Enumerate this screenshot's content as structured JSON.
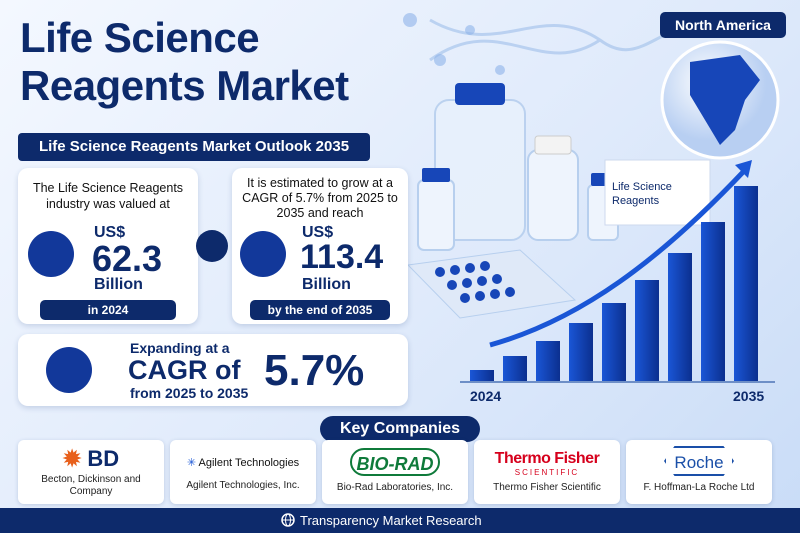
{
  "header": {
    "title_line1": "Life Science",
    "title_line2": "Reagents Market",
    "region": "North America"
  },
  "outlook": {
    "title": "Life Science Reagents Market Outlook 2035",
    "current": {
      "text": "The Life Science Reagents industry was valued at",
      "currency": "US$",
      "value": 62.3,
      "unit": "Billion",
      "period": "in 2024"
    },
    "forecast": {
      "text": "It is estimated to grow at a CAGR of 5.7% from 2025 to 2035 and reach",
      "currency": "US$",
      "value": 113.4,
      "unit": "Billion",
      "period": "by the end of 2035"
    },
    "cagr": {
      "line1": "Expanding at a",
      "line2": "CAGR of",
      "line3": "from 2025 to 2035",
      "value": "5.7%"
    }
  },
  "illustration": {
    "box_label": "Life Science Reagents",
    "axis_start": "2024",
    "axis_end": "2035"
  },
  "companies": {
    "title": "Key Companies",
    "items": [
      {
        "logo": "BD",
        "name": "Becton, Dickinson and Company"
      },
      {
        "logo": "Agilent Technologies",
        "name": "Agilent Technologies, Inc."
      },
      {
        "logo": "BIO-RAD",
        "name": "Bio-Rad Laboratories, Inc."
      },
      {
        "logo_line1": "Thermo Fisher",
        "logo_line2": "SCIENTIFIC",
        "name": "Thermo Fisher Scientific"
      },
      {
        "logo": "Roche",
        "name": "F. Hoffman-La Roche Ltd"
      }
    ]
  },
  "footer": {
    "text": "Transparency Market Research"
  }
}
